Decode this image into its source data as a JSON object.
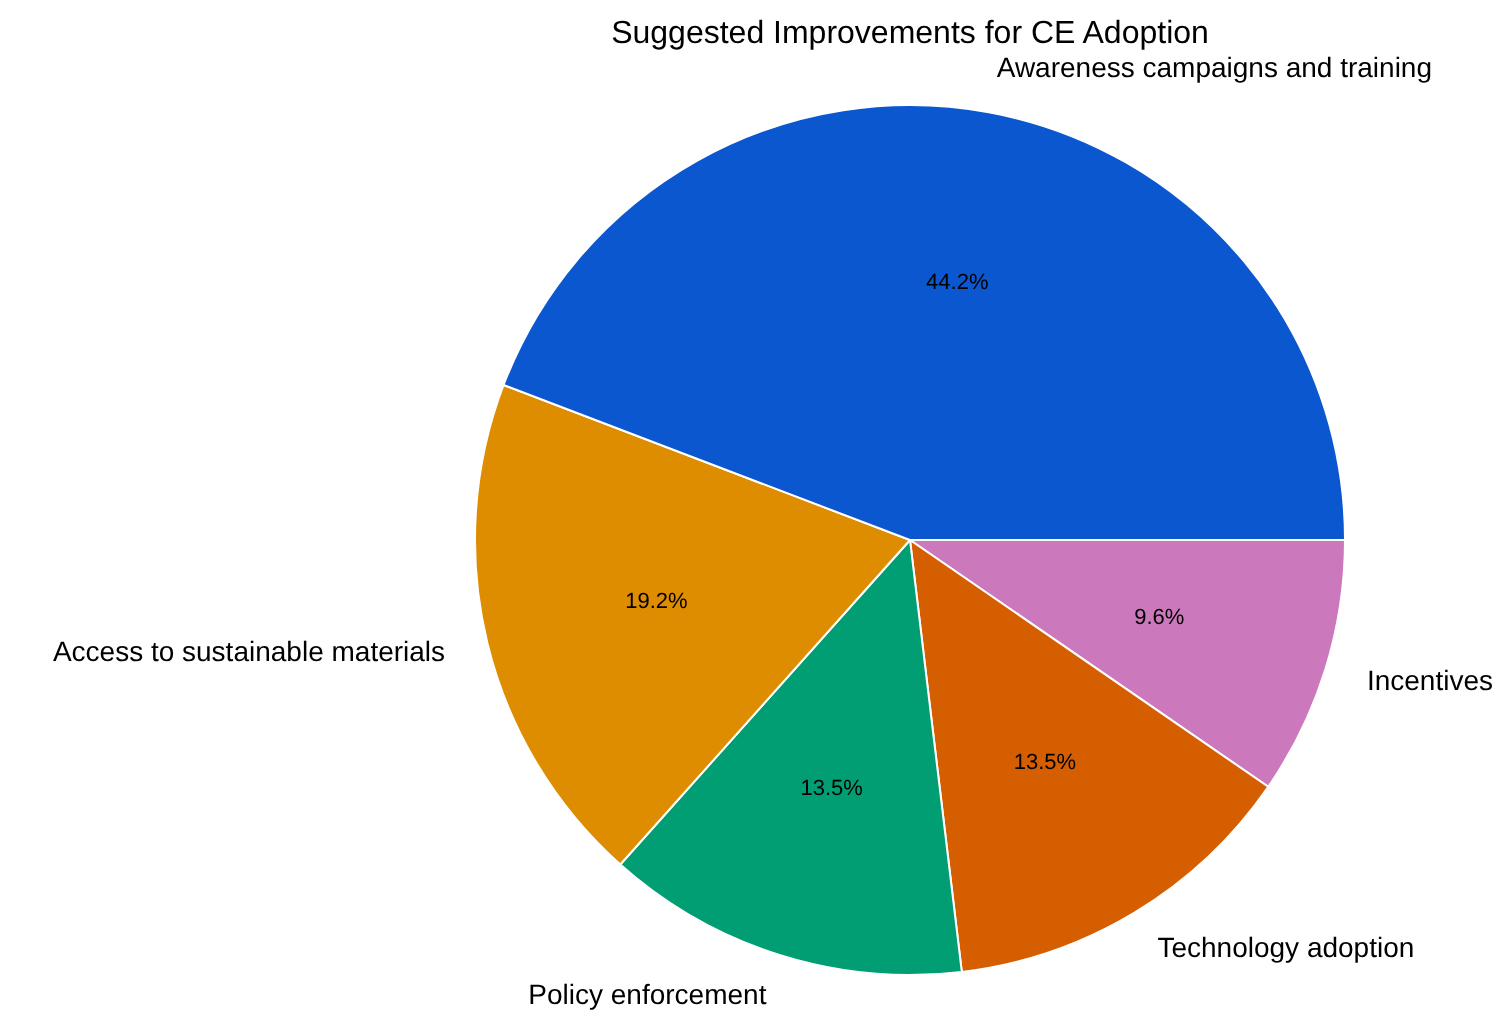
{
  "chart_data": {
    "type": "pie",
    "title": "Suggested Improvements for CE Adoption",
    "categories": [
      "Awareness campaigns and training",
      "Access to sustainable materials",
      "Policy enforcement",
      "Technology adoption",
      "Incentives"
    ],
    "values": [
      44.2,
      19.2,
      13.5,
      13.5,
      9.6
    ],
    "value_labels": [
      "44.2%",
      "19.2%",
      "13.5%",
      "13.5%",
      "9.6%"
    ],
    "colors": [
      "#0b57d0",
      "#de8c00",
      "#029e73",
      "#d55e00",
      "#cc78bc"
    ]
  }
}
